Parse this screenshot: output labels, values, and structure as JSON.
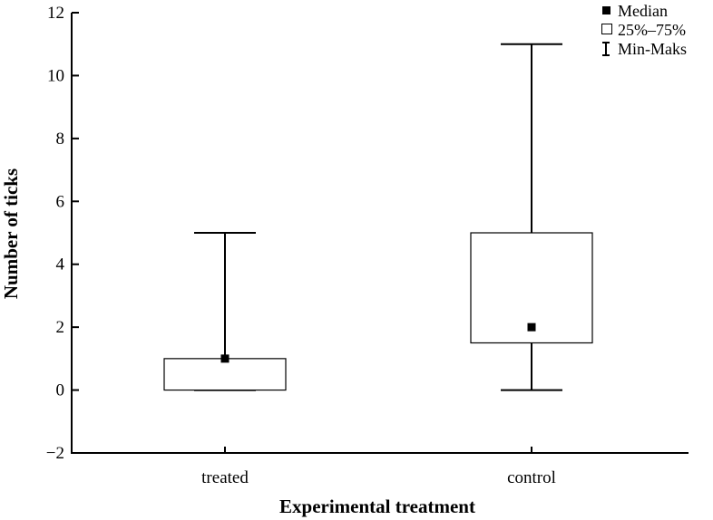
{
  "chart_data": {
    "type": "boxplot",
    "xlabel": "Experimental treatment",
    "ylabel": "Number of ticks",
    "ylim": [
      -2,
      12
    ],
    "yticks": [
      -2,
      0,
      2,
      4,
      6,
      8,
      10,
      12
    ],
    "ytick_labels": [
      "−2",
      "0",
      "2",
      "4",
      "6",
      "8",
      "10",
      "12"
    ],
    "categories": [
      "treated",
      "control"
    ],
    "series": [
      {
        "name": "treated",
        "median": 1,
        "q1": 0,
        "q3": 1,
        "min": 0,
        "max": 5
      },
      {
        "name": "control",
        "median": 2,
        "q1": 1.5,
        "q3": 5,
        "min": 0,
        "max": 11
      }
    ],
    "legend": {
      "position": "top-right",
      "items": [
        {
          "symbol": "filled-square",
          "label": "Median"
        },
        {
          "symbol": "open-square",
          "label": "25%–75%"
        },
        {
          "symbol": "whisker",
          "label": "Min-Maks"
        }
      ]
    },
    "grid": false
  }
}
